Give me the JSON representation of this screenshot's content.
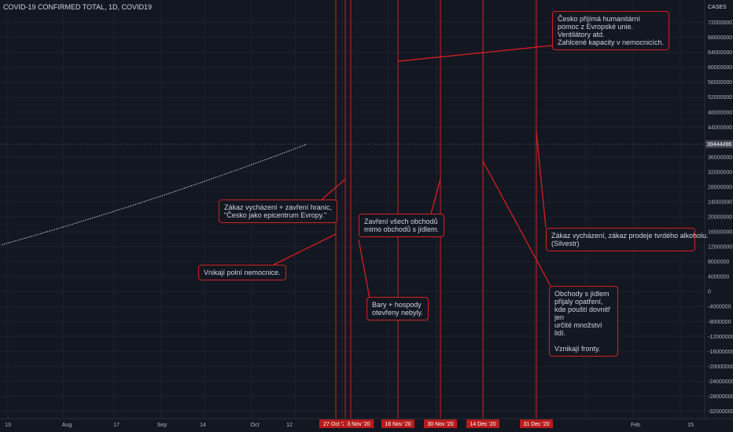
{
  "header": {
    "title": "COVID-19 CONFIRMED TOTAL, 1D, COVID19",
    "scale_label": "CASES"
  },
  "chart_data": {
    "type": "line",
    "ylim": [
      -34000000,
      78000000
    ],
    "y_ticks": [
      72000000,
      68000000,
      64000000,
      60000000,
      56000000,
      52000000,
      48000000,
      44000000,
      36000000,
      32000000,
      28000000,
      24000000,
      20000000,
      16000000,
      12000000,
      8000000,
      4000000,
      0,
      -4000000,
      -8000000,
      -12000000,
      -16000000,
      -20000000,
      -24000000,
      -28000000,
      -32000000
    ],
    "current_value": 39444496,
    "current_value_label": "39444496",
    "x_labels": [
      "13",
      "Aug",
      "17",
      "Sep",
      "14",
      "Oct",
      "12",
      "Feb",
      "15"
    ],
    "date_markers": [
      "27 Oct '20",
      "3 Nov '20",
      "16 Nov '20",
      "30 Nov '20",
      "14 Dec '20",
      "31 Dec '20"
    ],
    "series": [
      {
        "x_start": "2020-07-13",
        "x_end": "2020-10-14",
        "y_start": 12500000,
        "y_end": 39400000
      }
    ],
    "colors": {
      "series": "#d1d4dc",
      "annotation": "#d61f1f",
      "background": "#131722"
    }
  },
  "notes": [
    {
      "id": "cesko",
      "text": "Česko přijímá humanitární\npomoc z Evropské unie.\nVentilátory atd.\nZahlcené kapacity v nemocnicích."
    },
    {
      "id": "zakaz-vychazeni",
      "text": "Zákaz vycházení + zavření hranic,\n\"Česko jako epicentrum Evropy.\""
    },
    {
      "id": "zavreni-obchodu",
      "text": "Zavření všech obchodů\nmimo obchodů s jídlem."
    },
    {
      "id": "silvestr",
      "text": "Zákaz vycházení, zákaz prodeje tvrdého alkoholu.\n(Silvestr)"
    },
    {
      "id": "polni-nemocnice",
      "text": "Vnikají polní nemocnice."
    },
    {
      "id": "bary",
      "text": "Bary + hospody\notevřeny nebyly."
    },
    {
      "id": "obchody-jidlo",
      "text": "Obchody s jídlem\npřijaly opatření,\nkde pouští dovnitř jen\nurčité množství lidí.\n\nVznikají fronty."
    }
  ]
}
